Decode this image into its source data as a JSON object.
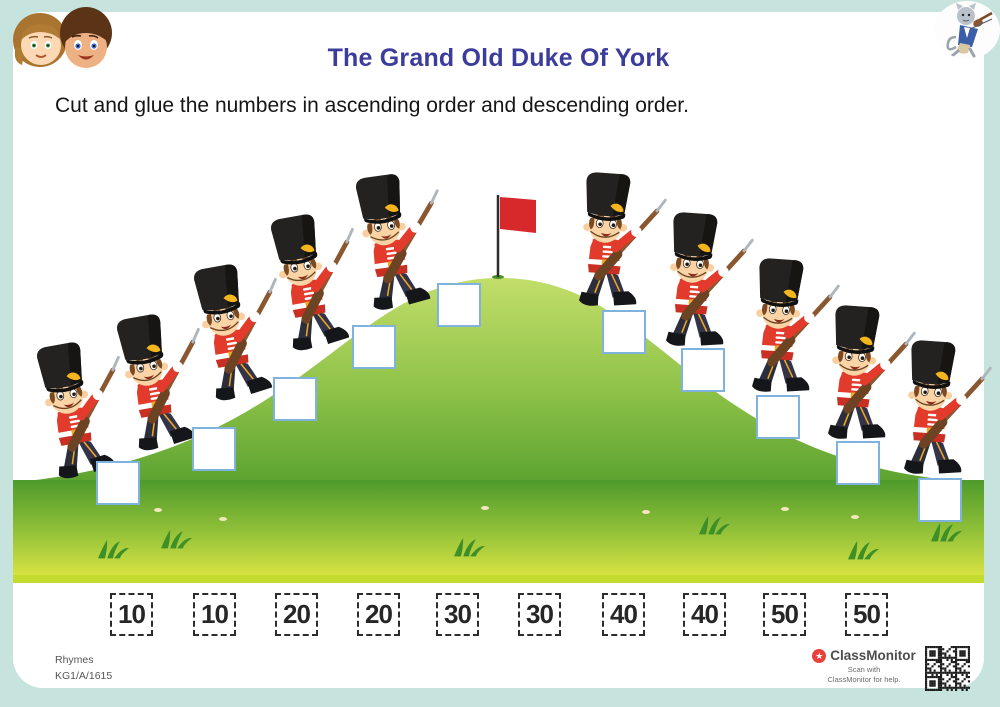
{
  "header": {
    "title": "The Grand Old Duke Of York",
    "instruction": "Cut and glue the numbers in ascending order and descending order."
  },
  "scene": {
    "soldier_count": 10,
    "glue_box_count": 10,
    "flag": "red flag on hilltop"
  },
  "cutouts": {
    "numbers": [
      "10",
      "10",
      "20",
      "20",
      "30",
      "30",
      "40",
      "40",
      "50",
      "50"
    ]
  },
  "footer": {
    "category": "Rhymes",
    "code": "KG1/A/1615",
    "brand": "ClassMonitor",
    "scan_help": [
      "Scan with",
      "ClassMonitor for help."
    ]
  },
  "branding": {
    "left_logo": "two-kids-faces",
    "right_badge": "cat-with-fiddle"
  },
  "colors": {
    "background": "#c6e3dd",
    "card": "#ffffff",
    "title": "#3b3c9c",
    "flag_red": "#d7282c",
    "soldier_coat": "#e23a2b",
    "hat_black": "#232220",
    "badge_yellow": "#f5b51c",
    "hill_green_top": "#c2de6a",
    "hill_green_bottom": "#5da331",
    "ground_green": "#4e9a2b",
    "ground_yellow": "#d6e242",
    "grass_strip": "#c3da2f",
    "glue_box_border": "#7fb2dc",
    "cutout_text": "#262626"
  }
}
